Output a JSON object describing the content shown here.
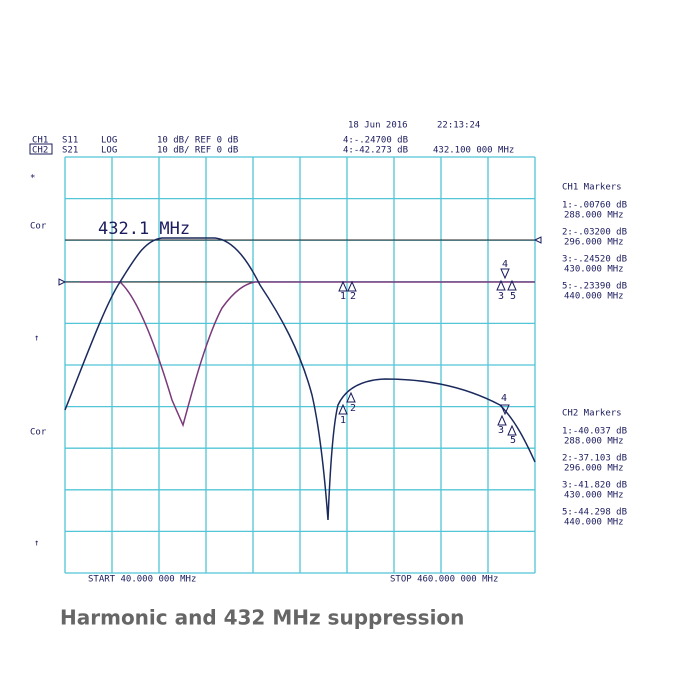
{
  "header": {
    "date": "18 Jun 2016",
    "time": "22:13:24"
  },
  "ch1": {
    "name": "CH1",
    "param": "S11",
    "format": "LOG",
    "scale": "10 dB/ REF 0 dB",
    "marker": "4:-.24700 dB"
  },
  "ch2": {
    "name": "CH2",
    "param": "S21",
    "format": "LOG",
    "scale": "10 dB/ REF 0 dB",
    "marker": "4:-42.273 dB",
    "freq": "432.100 000 MHz"
  },
  "left_labels": [
    "*",
    "Cor",
    "↑",
    "Cor",
    "↑"
  ],
  "annotation": "432.1 MHz",
  "ch1_markers": {
    "title": "CH1 Markers",
    "entries": [
      {
        "value": "1:-.00760 dB",
        "freq": "288.000 MHz"
      },
      {
        "value": "2:-.03200 dB",
        "freq": "296.000 MHz"
      },
      {
        "value": "3:-.24520 dB",
        "freq": "430.000 MHz"
      },
      {
        "value": "5:-.23390 dB",
        "freq": "440.000 MHz"
      }
    ]
  },
  "ch2_markers": {
    "title": "CH2 Markers",
    "entries": [
      {
        "value": "1:-40.037 dB",
        "freq": "288.000 MHz"
      },
      {
        "value": "2:-37.103 dB",
        "freq": "296.000 MHz"
      },
      {
        "value": "3:-41.820 dB",
        "freq": "430.000 MHz"
      },
      {
        "value": "5:-44.298 dB",
        "freq": "440.000 MHz"
      }
    ]
  },
  "trace_markers": [
    "1",
    "2",
    "3",
    "4",
    "5"
  ],
  "footer": {
    "start": "START 40.000 000 MHz",
    "stop": "STOP 460.000 000 MHz"
  },
  "caption": "Harmonic and 432 MHz suppression"
}
